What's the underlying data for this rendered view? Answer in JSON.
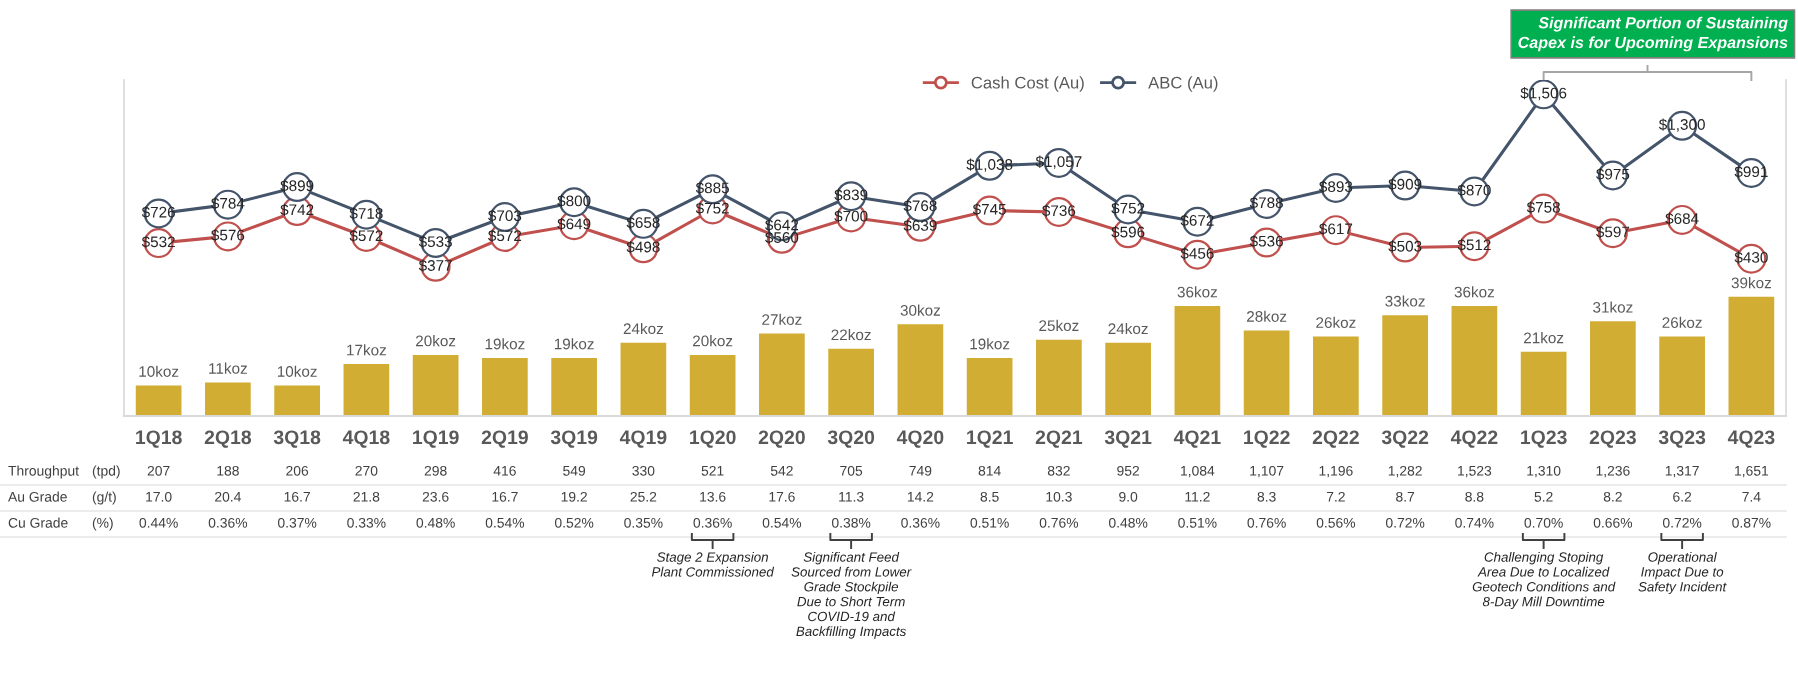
{
  "chart_data": {
    "type": "bar",
    "categories": [
      "1Q18",
      "2Q18",
      "3Q18",
      "4Q18",
      "1Q19",
      "2Q19",
      "3Q19",
      "4Q19",
      "1Q20",
      "2Q20",
      "3Q20",
      "4Q20",
      "1Q21",
      "2Q21",
      "3Q21",
      "4Q21",
      "1Q22",
      "2Q22",
      "3Q22",
      "4Q22",
      "1Q23",
      "2Q23",
      "3Q23",
      "4Q23"
    ],
    "series": [
      {
        "color": "#d1ad33",
        "values": [
          10,
          11,
          10,
          17,
          20,
          19,
          19,
          24,
          20,
          27,
          22,
          30,
          19,
          25,
          24,
          36,
          28,
          26,
          33,
          36,
          21,
          31,
          26,
          39
        ],
        "value_labels": [
          "10koz",
          "11koz",
          "10koz",
          "17koz",
          "20koz",
          "19koz",
          "19koz",
          "24koz",
          "20koz",
          "27koz",
          "22koz",
          "30koz",
          "19koz",
          "25koz",
          "24koz",
          "36koz",
          "28koz",
          "26koz",
          "33koz",
          "36koz",
          "21koz",
          "31koz",
          "26koz",
          "39koz"
        ]
      },
      {
        "type": "line",
        "axis": "y2",
        "name": "Cash Cost (Au)",
        "color": "#c0504d",
        "values": [
          532,
          576,
          742,
          572,
          377,
          572,
          649,
          498,
          752,
          560,
          700,
          639,
          745,
          736,
          596,
          456,
          536,
          617,
          503,
          512,
          758,
          597,
          684,
          430
        ],
        "value_labels": [
          "$532",
          "$576",
          "$742",
          "$572",
          "$377",
          "$572",
          "$649",
          "$498",
          "$752",
          "$560",
          "$700",
          "$639",
          "$745",
          "$736",
          "$596",
          "$456",
          "$536",
          "$617",
          "$503",
          "$512",
          "$758",
          "$597",
          "$684",
          "$430"
        ]
      },
      {
        "type": "line",
        "axis": "y2",
        "name": "ABC (Au)",
        "color": "#44546a",
        "values": [
          726,
          784,
          899,
          718,
          533,
          703,
          800,
          658,
          885,
          642,
          839,
          768,
          1038,
          1057,
          752,
          672,
          788,
          893,
          909,
          870,
          1506,
          975,
          1300,
          991
        ],
        "value_labels": [
          "$726",
          "$784",
          "$899",
          "$718",
          "$533",
          "$703",
          "$800",
          "$658",
          "$885",
          "$642",
          "$839",
          "$768",
          "$1,038",
          "$1,057",
          "$752",
          "$672",
          "$788",
          "$893",
          "$909",
          "$870",
          "$1,506",
          "$975",
          "$1,300",
          "$991"
        ]
      }
    ],
    "ylim": [
      0,
      110
    ],
    "y2lim": [
      -600,
      1600
    ],
    "marker": "circle",
    "line_style": "solid",
    "legend": "top",
    "annotations": [
      "Throughput",
      "(tpd)",
      "207",
      "188",
      "206",
      "270",
      "298",
      "416",
      "549",
      "330",
      "521",
      "542",
      "705",
      "749",
      "814",
      "832",
      "952",
      "1,084",
      "1,107",
      "1,196",
      "1,282",
      "1,523",
      "1,310",
      "1,236",
      "1,317",
      "1,651",
      "Au Grade",
      "(g/t)",
      "17.0",
      "20.4",
      "16.7",
      "21.8",
      "23.6",
      "16.7",
      "19.2",
      "25.2",
      "13.6",
      "17.6",
      "11.3",
      "14.2",
      "8.5",
      "10.3",
      "9.0",
      "11.2",
      "8.3",
      "7.2",
      "8.7",
      "8.8",
      "5.2",
      "8.2",
      "6.2",
      "7.4",
      "Cu Grade",
      "(%)",
      "0.44%",
      "0.36%",
      "0.37%",
      "0.33%",
      "0.48%",
      "0.54%",
      "0.52%",
      "0.35%",
      "0.36%",
      "0.54%",
      "0.38%",
      "0.36%",
      "0.51%",
      "0.76%",
      "0.48%",
      "0.51%",
      "0.76%",
      "0.56%",
      "0.72%",
      "0.74%",
      "0.70%",
      "0.66%",
      "0.72%",
      "0.87%",
      "Significant Portion of Sustaining\nCapex is for Upcoming Expansions",
      "Stage 2 Expansion\nPlant Commissioned",
      "Significant Feed\nSourced from Lower\nGrade Stockpile\nDue to Short Term\nCOVID-19 and\nBackfilling Impacts",
      "Challenging Stoping\nArea Due to Localized\nGeotech Conditions and\n8-Day Mill Downtime",
      "Operational\nImpact Due to\nSafety Incident"
    ]
  }
}
